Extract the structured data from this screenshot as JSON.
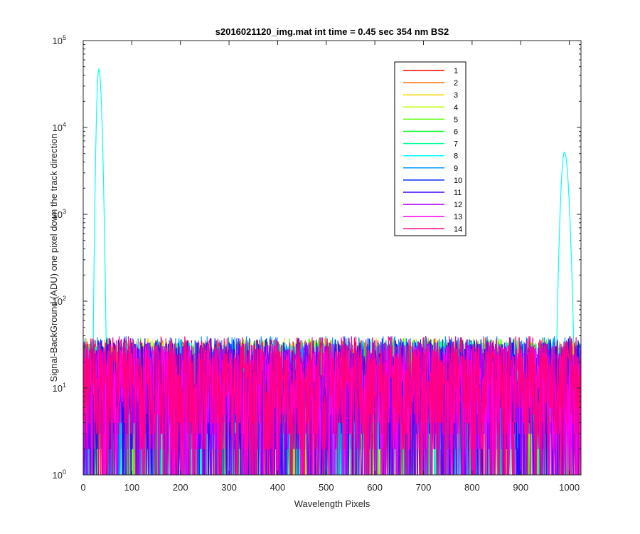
{
  "chart_data": {
    "type": "line",
    "title": "s2016021120_img.mat int time = 0.45 sec  354 nm BS2",
    "xlabel": "Wavelength Pixels",
    "ylabel": "Signal-BackGround (ADU) one pixel down the track direction",
    "xlim": [
      0,
      1024
    ],
    "ylim": [
      1,
      100000
    ],
    "yscale": "log",
    "grid": false,
    "legend_position": "top-right",
    "x_ticks": [
      "0",
      "100",
      "200",
      "300",
      "400",
      "500",
      "600",
      "700",
      "800",
      "900",
      "1000"
    ],
    "y_ticks": [
      {
        "base": "10",
        "exp": "0",
        "value": 1
      },
      {
        "base": "10",
        "exp": "1",
        "value": 10
      },
      {
        "base": "10",
        "exp": "2",
        "value": 100
      },
      {
        "base": "10",
        "exp": "3",
        "value": 1000
      },
      {
        "base": "10",
        "exp": "4",
        "value": 10000
      },
      {
        "base": "10",
        "exp": "5",
        "value": 100000
      }
    ],
    "series": [
      {
        "name": "1",
        "color": "#ff0000",
        "noise_max": 40
      },
      {
        "name": "2",
        "color": "#ff6a00",
        "noise_max": 40
      },
      {
        "name": "3",
        "color": "#ffd400",
        "noise_max": 42
      },
      {
        "name": "4",
        "color": "#c0ff00",
        "noise_max": 38
      },
      {
        "name": "5",
        "color": "#55ff00",
        "noise_max": 42
      },
      {
        "name": "6",
        "color": "#00ff26",
        "noise_max": 38
      },
      {
        "name": "7",
        "color": "#00ff95",
        "noise_max": 36
      },
      {
        "name": "8",
        "color": "#00ffff",
        "noise_max": 40,
        "peaks": [
          {
            "center": 32,
            "peak_value": 47000,
            "rise_width": 3,
            "decay_width": 4
          },
          {
            "center": 990,
            "peak_value": 5200,
            "rise_width": 5,
            "decay_width": 6
          }
        ]
      },
      {
        "name": "9",
        "color": "#0095ff",
        "noise_max": 44
      },
      {
        "name": "10",
        "color": "#0026ff",
        "noise_max": 42
      },
      {
        "name": "11",
        "color": "#3f00ff",
        "noise_max": 38
      },
      {
        "name": "12",
        "color": "#aa00ff",
        "noise_max": 38
      },
      {
        "name": "13",
        "color": "#ff00ea",
        "noise_max": 36
      },
      {
        "name": "14",
        "color": "#ff0080",
        "noise_max": 44
      }
    ],
    "n_points": 1024,
    "noise_floor": 1
  }
}
